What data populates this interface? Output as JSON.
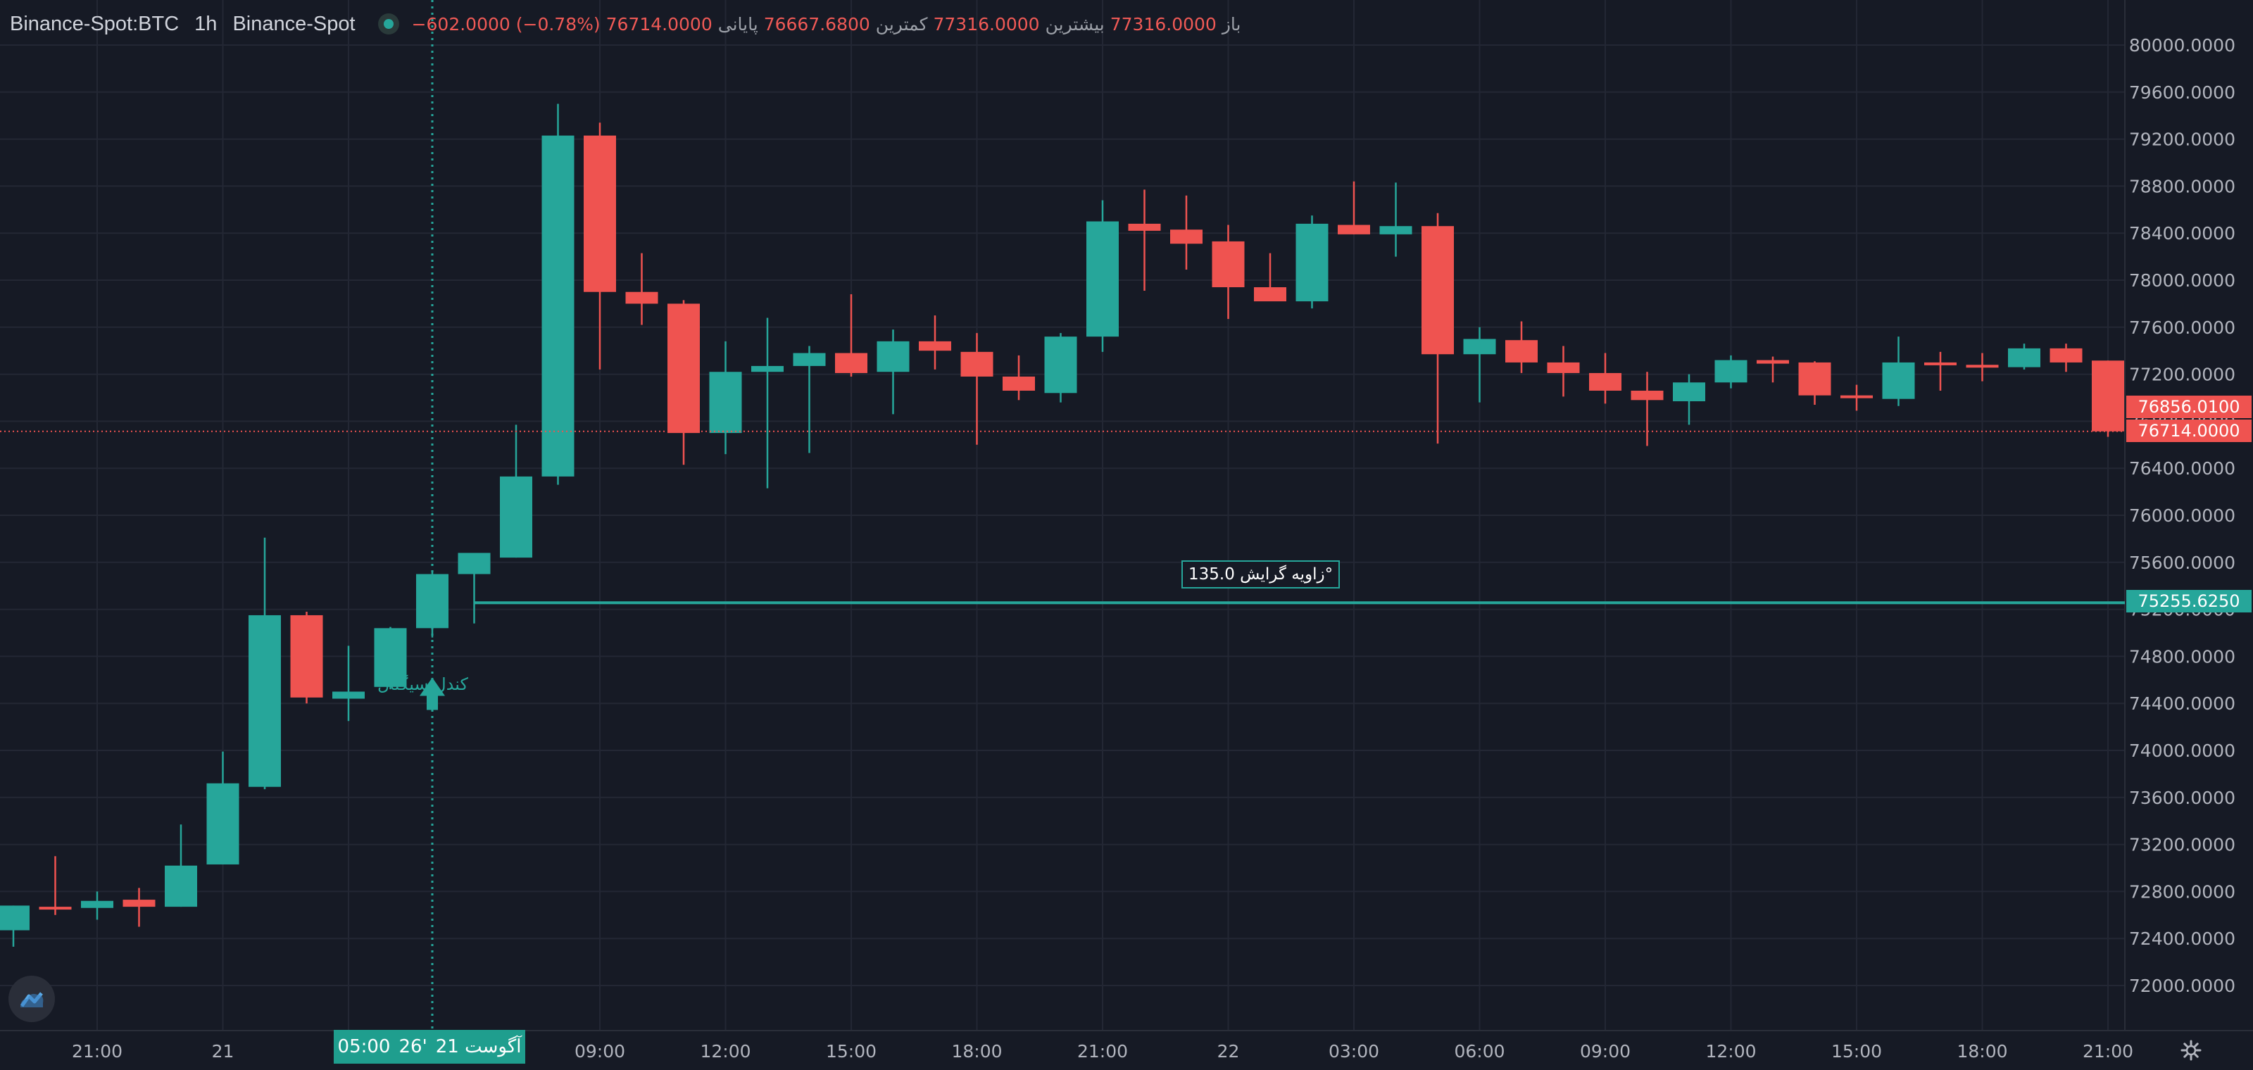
{
  "legend": {
    "symbol": "Binance-Spot:BTC",
    "interval": "1h",
    "exchange": "Binance-Spot",
    "open_label": "باز",
    "open_value": "77316.0000",
    "high_label": "بیشترین",
    "high_value": "77316.0000",
    "low_label": "کمترین",
    "low_value": "76667.6800",
    "close_label": "پایانی",
    "close_value": "76714.0000",
    "change": "−602.0000 (−0.78%)"
  },
  "colors": {
    "up": "#26a69a",
    "down": "#ef5350",
    "background": "#161a25",
    "grid": "#232734",
    "axis_text": "#b2b5be"
  },
  "annotations": {
    "trend_angle": "زاویه گرایش 135.0°",
    "candle_note": "کندل سیگنال",
    "crosshair_date": "آگوست 21",
    "crosshair_day": "26'",
    "crosshair_time": "05:00"
  },
  "price_tags": {
    "prev_close": "76856.0100",
    "last": "76714.0000",
    "line": "75255.6250"
  },
  "icons": {
    "logo": "tradingview-cloud-icon",
    "settings": "gear-icon",
    "status": "live-dot-icon"
  },
  "chart_data": {
    "type": "candlestick",
    "y_ticks": [
      "80000.0000",
      "79600.0000",
      "79200.0000",
      "78800.0000",
      "78400.0000",
      "78000.0000",
      "77600.0000",
      "77200.0000",
      "76800.0000",
      "76400.0000",
      "76000.0000",
      "75600.0000",
      "75200.0000",
      "74800.0000",
      "74400.0000",
      "74000.0000",
      "73600.0000",
      "73200.0000",
      "72800.0000",
      "72400.0000",
      "72000.0000"
    ],
    "x_ticks": [
      {
        "label": "21:00",
        "index": 2
      },
      {
        "label": "21",
        "index": 5
      },
      {
        "label": "0",
        "index": 8
      },
      {
        "label": "09:00",
        "index": 14
      },
      {
        "label": "12:00",
        "index": 17
      },
      {
        "label": "15:00",
        "index": 20
      },
      {
        "label": "18:00",
        "index": 23
      },
      {
        "label": "21:00",
        "index": 26
      },
      {
        "label": "22",
        "index": 29
      },
      {
        "label": "03:00",
        "index": 32
      },
      {
        "label": "06:00",
        "index": 35
      },
      {
        "label": "09:00",
        "index": 38
      },
      {
        "label": "12:00",
        "index": 41
      },
      {
        "label": "15:00",
        "index": 44
      },
      {
        "label": "18:00",
        "index": 47
      },
      {
        "label": "21:00",
        "index": 50
      }
    ],
    "y_range": [
      71700,
      80200
    ],
    "horizontal_line": 75255.625,
    "crosshair_index": 10,
    "candles": [
      [
        72470,
        72680,
        72330,
        72680
      ],
      [
        72670,
        73100,
        72600,
        72660
      ],
      [
        72660,
        72800,
        72560,
        72720
      ],
      [
        72730,
        72830,
        72500,
        72670
      ],
      [
        72670,
        73370,
        72670,
        73020
      ],
      [
        73030,
        73990,
        73030,
        73720
      ],
      [
        73690,
        75810,
        73670,
        75150
      ],
      [
        75150,
        75180,
        74400,
        74450
      ],
      [
        74440,
        74890,
        74250,
        74500
      ],
      [
        74540,
        75050,
        74520,
        75040
      ],
      [
        75040,
        75520,
        74960,
        75500
      ],
      [
        75500,
        75680,
        75080,
        75680
      ],
      [
        75640,
        76770,
        75640,
        76330
      ],
      [
        76330,
        79500,
        76260,
        79230
      ],
      [
        79230,
        79340,
        77240,
        77900
      ],
      [
        77900,
        78230,
        77620,
        77800
      ],
      [
        77800,
        77830,
        76430,
        76700
      ],
      [
        76700,
        77480,
        76520,
        77220
      ],
      [
        77220,
        77680,
        76230,
        77270
      ],
      [
        77270,
        77440,
        76530,
        77380
      ],
      [
        77380,
        77880,
        77180,
        77210
      ],
      [
        77220,
        77580,
        76860,
        77480
      ],
      [
        77480,
        77700,
        77240,
        77400
      ],
      [
        77390,
        77550,
        76600,
        77180
      ],
      [
        77180,
        77360,
        76980,
        77060
      ],
      [
        77040,
        77550,
        76960,
        77520
      ],
      [
        77520,
        78680,
        77390,
        78500
      ],
      [
        78480,
        78770,
        77910,
        78420
      ],
      [
        78430,
        78720,
        78090,
        78310
      ],
      [
        78330,
        78470,
        77670,
        77940
      ],
      [
        77940,
        78230,
        77820,
        77820
      ],
      [
        77820,
        78550,
        77760,
        78480
      ],
      [
        78470,
        78840,
        78390,
        78390
      ],
      [
        78390,
        78830,
        78200,
        78460
      ],
      [
        78460,
        78570,
        76610,
        77370
      ],
      [
        77370,
        77600,
        76960,
        77500
      ],
      [
        77490,
        77650,
        77210,
        77300
      ],
      [
        77300,
        77440,
        77010,
        77210
      ],
      [
        77210,
        77380,
        76950,
        77060
      ],
      [
        77060,
        77220,
        76590,
        76980
      ],
      [
        76970,
        77200,
        76770,
        77130
      ],
      [
        77130,
        77360,
        77080,
        77320
      ],
      [
        77320,
        77350,
        77130,
        77290
      ],
      [
        77300,
        77310,
        76940,
        77020
      ],
      [
        77020,
        77110,
        76890,
        77010
      ],
      [
        76990,
        77520,
        76930,
        77300
      ],
      [
        77300,
        77390,
        77060,
        77290
      ],
      [
        77280,
        77380,
        77140,
        77270
      ],
      [
        77260,
        77460,
        77240,
        77420
      ],
      [
        77420,
        77460,
        77220,
        77300
      ],
      [
        77316,
        77316,
        76668,
        76714
      ]
    ]
  }
}
